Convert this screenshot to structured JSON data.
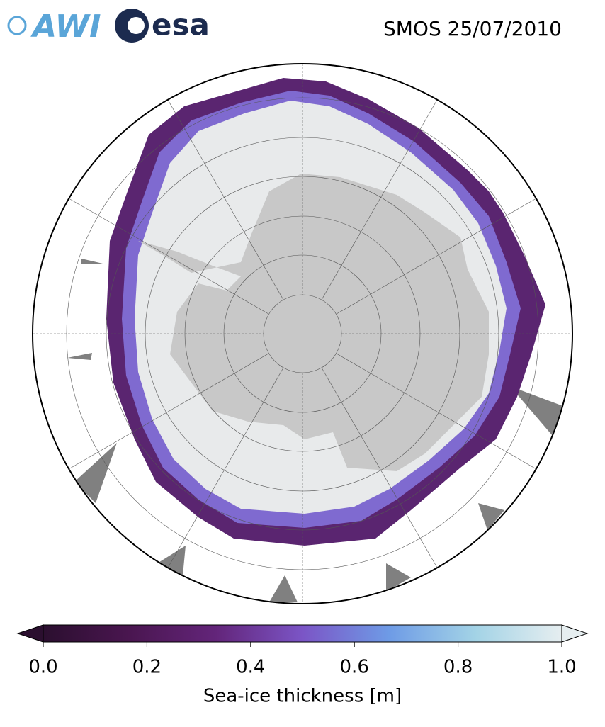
{
  "header": {
    "logos": [
      "AWI",
      "esa"
    ],
    "title": "SMOS 25/07/2010"
  },
  "colorbar": {
    "label": "Sea-ice thickness [m]",
    "lim": [
      0,
      1
    ],
    "ticks": [
      {
        "value": 0,
        "label": "0.0"
      },
      {
        "value": 0.2,
        "label": "0.2"
      },
      {
        "value": 0.4,
        "label": "0.4"
      },
      {
        "value": 0.6,
        "label": "0.6"
      },
      {
        "value": 0.8,
        "label": "0.8"
      },
      {
        "value": 1,
        "label": "1.0"
      }
    ],
    "colormap": [
      "#2b0f2f",
      "#4a1650",
      "#63257a",
      "#7b55c6",
      "#6e9be6",
      "#a3d3e6",
      "#e6eef0"
    ]
  }
}
